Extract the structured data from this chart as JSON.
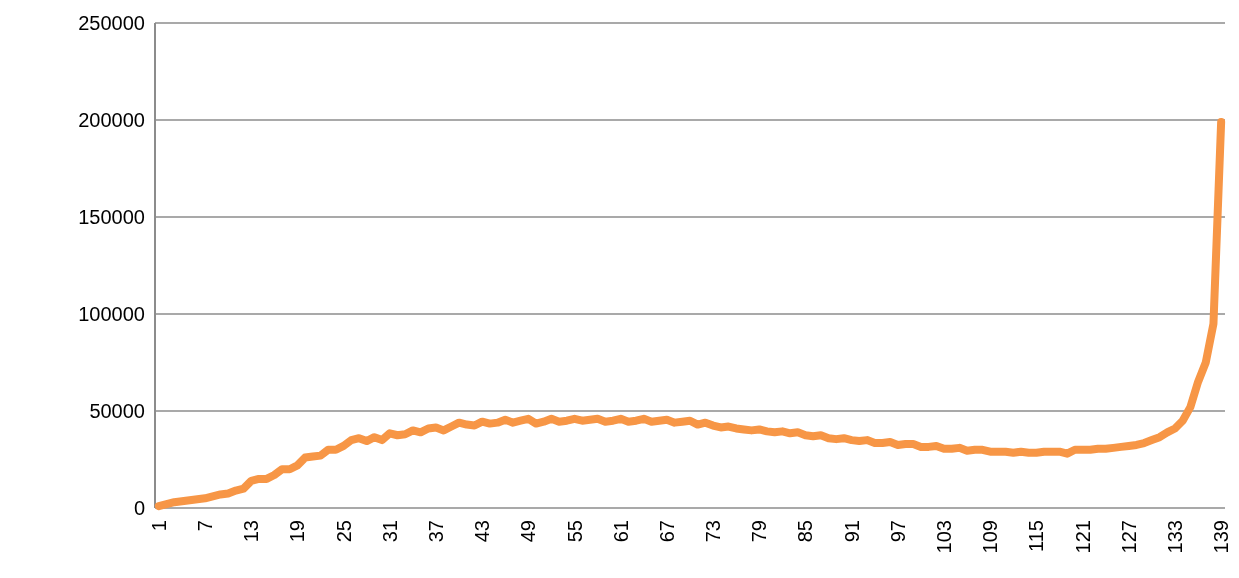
{
  "chart_data": {
    "type": "line",
    "categories": [
      "1",
      null,
      null,
      null,
      null,
      null,
      "7",
      null,
      null,
      null,
      null,
      null,
      "13",
      null,
      null,
      null,
      null,
      null,
      "19",
      null,
      null,
      null,
      null,
      null,
      "25",
      null,
      null,
      null,
      null,
      null,
      "31",
      null,
      null,
      null,
      null,
      null,
      "37",
      null,
      null,
      null,
      null,
      null,
      "43",
      null,
      null,
      null,
      null,
      null,
      "49",
      null,
      null,
      null,
      null,
      null,
      "55",
      null,
      null,
      null,
      null,
      null,
      "61",
      null,
      null,
      null,
      null,
      null,
      "67",
      null,
      null,
      null,
      null,
      null,
      "73",
      null,
      null,
      null,
      null,
      null,
      "79",
      null,
      null,
      null,
      null,
      null,
      "85",
      null,
      null,
      null,
      null,
      null,
      "91",
      null,
      null,
      null,
      null,
      null,
      "97",
      null,
      null,
      null,
      null,
      null,
      "103",
      null,
      null,
      null,
      null,
      null,
      "109",
      null,
      null,
      null,
      null,
      null,
      "115",
      null,
      null,
      null,
      null,
      null,
      "121",
      null,
      null,
      null,
      null,
      null,
      "127",
      null,
      null,
      null,
      null,
      null,
      "133",
      null,
      null,
      null,
      null,
      null,
      "139"
    ],
    "series": [
      {
        "color": "#f79646",
        "values": [
          1000,
          2000,
          3000,
          3500,
          4000,
          4500,
          5000,
          6000,
          7000,
          7500,
          9000,
          10000,
          14000,
          15000,
          15000,
          17000,
          20000,
          20000,
          22000,
          26000,
          26500,
          27000,
          30000,
          30000,
          32000,
          35000,
          36000,
          34500,
          36500,
          35000,
          38500,
          37500,
          38000,
          40000,
          39000,
          41000,
          41500,
          40000,
          42000,
          44000,
          43000,
          42500,
          44500,
          43500,
          44000,
          45500,
          44000,
          45000,
          46000,
          43500,
          44500,
          46000,
          44500,
          45000,
          46000,
          45000,
          45500,
          46000,
          44500,
          45000,
          46000,
          44500,
          45000,
          46000,
          44500,
          45000,
          45500,
          44000,
          44500,
          45000,
          43000,
          44000,
          42500,
          41500,
          42000,
          41000,
          40500,
          40000,
          40500,
          39500,
          39000,
          39500,
          38500,
          39000,
          37500,
          37000,
          37500,
          36000,
          35500,
          36000,
          35000,
          34500,
          35000,
          33500,
          33500,
          34000,
          32500,
          33000,
          33000,
          31500,
          31500,
          32000,
          30500,
          30500,
          31000,
          29500,
          30000,
          30000,
          29000,
          29000,
          29000,
          28500,
          29000,
          28500,
          28500,
          29000,
          29000,
          29000,
          28000,
          30000,
          30000,
          30000,
          30500,
          30500,
          31000,
          31500,
          32000,
          32500,
          33500,
          35000,
          36500,
          39000,
          41000,
          45000,
          52000,
          65000,
          75000,
          95000,
          199000
        ]
      }
    ],
    "ylim": [
      0,
      250000
    ],
    "yticks": [
      0,
      50000,
      100000,
      150000,
      200000,
      250000
    ],
    "grid": "y",
    "marker": "none",
    "line_style": "solid"
  }
}
